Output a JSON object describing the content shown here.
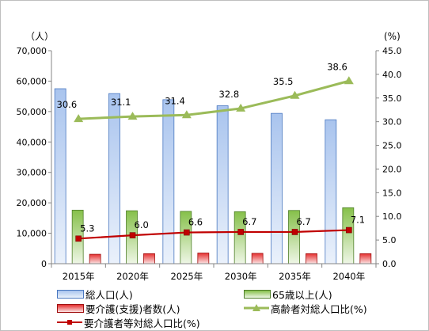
{
  "chart_data": {
    "type": "bar",
    "categories": [
      "2015年",
      "2020年",
      "2025年",
      "2030年",
      "2035年",
      "2040年"
    ],
    "series": [
      {
        "name": "総人口(人)",
        "kind": "bar",
        "axis": "left",
        "color": "#8fb1e6",
        "values": [
          57500,
          55900,
          53900,
          51900,
          49400,
          47300
        ]
      },
      {
        "name": "65歳以上(人)",
        "kind": "bar",
        "axis": "left",
        "color": "#8cc04e",
        "values": [
          17600,
          17400,
          17200,
          17100,
          17500,
          18400
        ]
      },
      {
        "name": "要介護(支援)者数(人)",
        "kind": "bar",
        "axis": "left",
        "color": "#e02020",
        "values": [
          3100,
          3300,
          3500,
          3400,
          3300,
          3300
        ]
      },
      {
        "name": "高齢者対総人口比(%)",
        "kind": "line",
        "axis": "right",
        "color": "#9bbb59",
        "values": [
          30.6,
          31.1,
          31.4,
          32.8,
          35.5,
          38.6
        ],
        "labels": [
          "30.6",
          "31.1",
          "31.4",
          "32.8",
          "35.5",
          "38.6"
        ]
      },
      {
        "name": "要介護者等対総人口比(%)",
        "kind": "line",
        "axis": "right",
        "color": "#c00000",
        "values": [
          5.3,
          6.0,
          6.6,
          6.7,
          6.7,
          7.1
        ],
        "labels": [
          "5.3",
          "6.0",
          "6.6",
          "6.7",
          "6.7",
          "7.1"
        ]
      }
    ],
    "left_axis": {
      "unit": "（人）",
      "min": 0,
      "max": 70000,
      "ticks": [
        "0",
        "10,000",
        "20,000",
        "30,000",
        "40,000",
        "50,000",
        "60,000",
        "70,000"
      ]
    },
    "right_axis": {
      "unit": "(%)",
      "min": 0,
      "max": 45,
      "ticks": [
        "0.0",
        "5.0",
        "10.0",
        "15.0",
        "20.0",
        "25.0",
        "30.0",
        "35.0",
        "40.0",
        "45.0"
      ]
    },
    "grid": false,
    "legend_position": "bottom"
  }
}
